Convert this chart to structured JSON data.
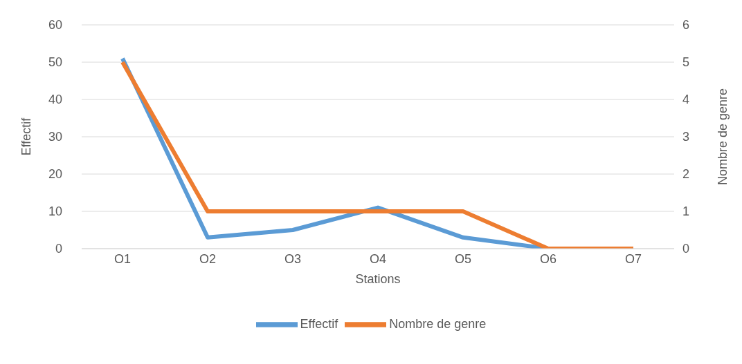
{
  "chart_data": {
    "type": "line",
    "xlabel": "Stations",
    "ylabel": "Effectif",
    "y2label": "Nombre de genre",
    "categories": [
      "O1",
      "O2",
      "O3",
      "O4",
      "O5",
      "O6",
      "O7"
    ],
    "series": [
      {
        "name": "Effectif",
        "color": "#5b9bd5",
        "values": [
          51,
          3,
          5,
          11,
          3,
          0,
          0
        ]
      },
      {
        "name": "Nombre de genre",
        "color": "#ed7d31",
        "values": [
          5,
          1,
          1,
          1,
          1,
          0,
          0
        ],
        "axis": "y2"
      }
    ],
    "ylim": [
      0,
      60
    ],
    "yticks": [
      0,
      10,
      20,
      30,
      40,
      50,
      60
    ],
    "y2lim": [
      0,
      6
    ],
    "y2ticks": [
      0,
      1,
      2,
      3,
      4,
      5,
      6
    ],
    "grid": "y",
    "legend": "bottom",
    "marker": "none",
    "line_style": "solid"
  }
}
